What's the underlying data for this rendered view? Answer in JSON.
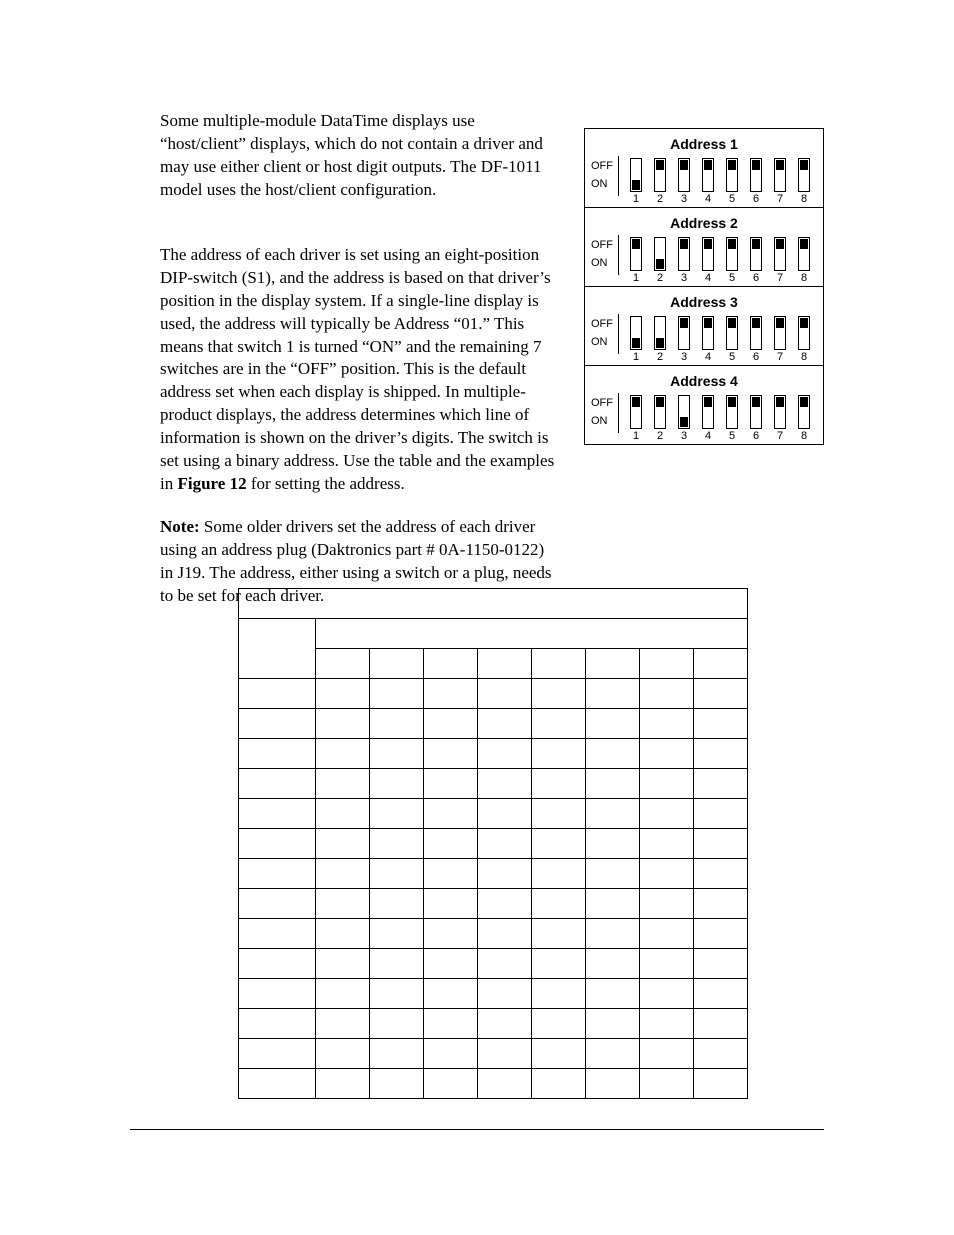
{
  "paragraphs": {
    "p1": "Some multiple-module DataTime displays use “host/client” displays, which do not contain a driver and may use either client or host digit outputs. The DF-1011 model uses the host/client configuration.",
    "p2": "The address of each driver is set using an eight-position DIP-switch (S1), and the address is based on that driver’s position in the display system. If a single-line display is used, the address will typically be Address “01.” This means that switch 1 is turned “ON” and the remaining 7 switches are in the “OFF” position. This is the default address set when each display is shipped. In multiple-product displays, the address determines which line of information is shown on the driver’s digits. The switch is set using a binary address. Use the table and the examples in ",
    "p2_fig": "Figure 12",
    "p2_tail": " for setting the address.",
    "note_lead": "Note:",
    "note_body": " Some older drivers set the address of each driver using an address plug (Daktronics part # 0A-1150-0122) in J19. The address, either using a switch or a plug, needs to be set for each driver."
  },
  "dip": {
    "label_off": "OFF",
    "label_on": "ON",
    "switch_numbers": [
      "1",
      "2",
      "3",
      "4",
      "5",
      "6",
      "7",
      "8"
    ]
  },
  "addresses": [
    {
      "title": "Address 1",
      "on_switches": [
        1
      ]
    },
    {
      "title": "Address 2",
      "on_switches": [
        2
      ]
    },
    {
      "title": "Address 3",
      "on_switches": [
        1,
        2
      ]
    },
    {
      "title": "Address 4",
      "on_switches": [
        3
      ]
    }
  ],
  "settings_table": {
    "header_rows": 2,
    "body_rows": 14,
    "sw_cols": 8
  },
  "colors": {
    "text": "#000000",
    "background": "#ffffff",
    "border": "#000000"
  }
}
